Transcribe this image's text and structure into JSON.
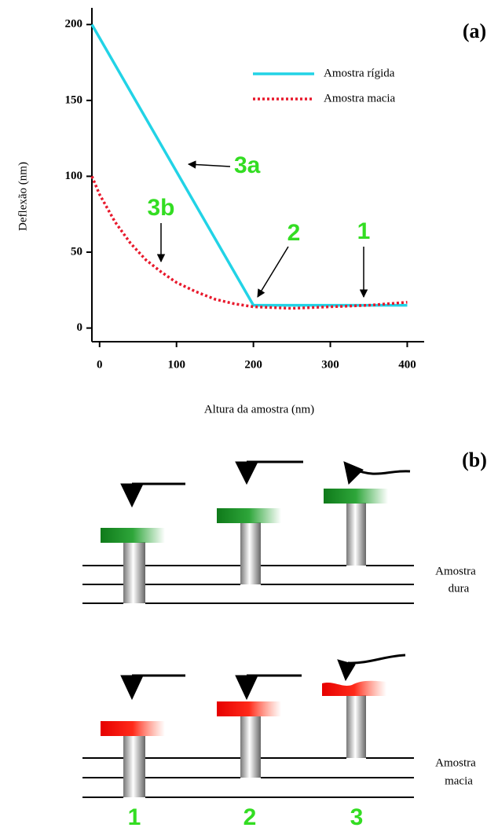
{
  "chart_data": {
    "type": "line",
    "panel_label": "(a)",
    "x_label": "Altura da amostra (nm)",
    "y_label": "Deflexão (nm)",
    "xlim": [
      -10,
      422
    ],
    "ylim": [
      -9,
      211
    ],
    "xticks": [
      0,
      100,
      200,
      300,
      400
    ],
    "yticks": [
      0,
      50,
      100,
      150,
      200
    ],
    "legend": "top-right",
    "series": [
      {
        "name": "Amostra rígida",
        "color": "#22d3e6",
        "style": "solid",
        "x": [
          -10,
          200,
          400
        ],
        "values": [
          200,
          15,
          15
        ]
      },
      {
        "name": "Amostra macia",
        "color": "#e8192c",
        "style": "dotted",
        "x": [
          -10,
          0,
          20,
          40,
          60,
          80,
          100,
          125,
          150,
          175,
          200,
          250,
          300,
          350,
          400
        ],
        "values": [
          100,
          88,
          70,
          56,
          45,
          37,
          30,
          24,
          19,
          16,
          14,
          13,
          14,
          15,
          17
        ]
      }
    ],
    "annotations": [
      "3a",
      "3b",
      "2",
      "1"
    ]
  },
  "diagram": {
    "panel_label": "(b)",
    "hard_label": [
      "Amostra",
      "dura"
    ],
    "soft_label": [
      "Amostra",
      "macia"
    ],
    "steps": [
      "1",
      "2",
      "3"
    ]
  }
}
